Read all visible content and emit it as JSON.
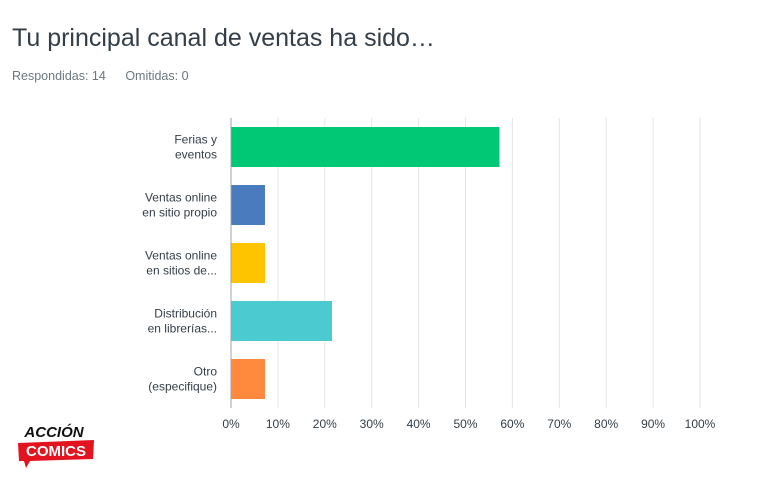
{
  "header": {
    "title": "Tu principal canal de ventas ha sido…",
    "answered": "Respondidas: 14",
    "skipped": "Omitidas: 0"
  },
  "logo": {
    "line1": "ACCIÓN",
    "line2": "COMICS",
    "icon": "accion-comics-logo"
  },
  "chart_data": {
    "type": "bar",
    "orientation": "horizontal",
    "categories": [
      [
        "Ferias y",
        "eventos"
      ],
      [
        "Ventas online",
        "en sitio propio"
      ],
      [
        "Ventas online",
        "en sitios de..."
      ],
      [
        "Distribución",
        "en librerías..."
      ],
      [
        "Otro",
        "(especifique)"
      ]
    ],
    "values": [
      57.14,
      7.14,
      7.14,
      21.43,
      7.14
    ],
    "colors": [
      "#00c875",
      "#4a7bbf",
      "#ffc400",
      "#4bcbd0",
      "#ff8a3d"
    ],
    "xlim": [
      0,
      100
    ],
    "xticks": [
      "0%",
      "10%",
      "20%",
      "30%",
      "40%",
      "50%",
      "60%",
      "70%",
      "80%",
      "90%",
      "100%"
    ],
    "grid": true,
    "xlabel": "",
    "ylabel": ""
  }
}
